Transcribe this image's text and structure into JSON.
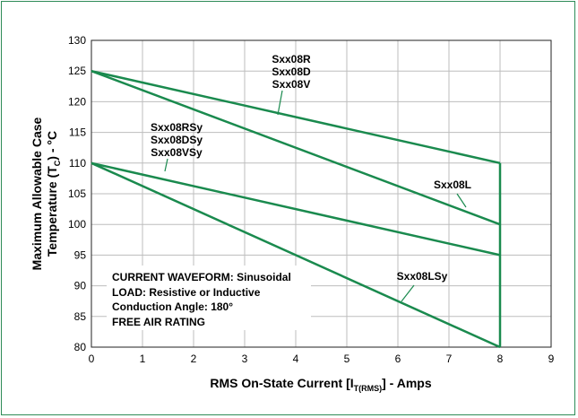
{
  "chart_data": {
    "type": "line",
    "xlabel": "RMS On-State Current [I",
    "xlabel_sub": "T(RMS)",
    "xlabel_tail": "] - Amps",
    "ylabel_line1": "Maximum Allowable Case",
    "ylabel_line2_pre": "Temperature (T",
    "ylabel_line2_sub": "C",
    "ylabel_line2_post": ") - °C",
    "xlim": [
      0,
      9
    ],
    "ylim": [
      80,
      130
    ],
    "x_ticks": [
      0,
      1,
      2,
      3,
      4,
      5,
      6,
      7,
      8,
      9
    ],
    "y_ticks": [
      80,
      85,
      90,
      95,
      100,
      105,
      110,
      115,
      120,
      125,
      130
    ],
    "grid": true,
    "line_color": "#1a8a4e",
    "series": [
      {
        "name": "Sxx08R / Sxx08D / Sxx08V",
        "x": [
          0,
          8
        ],
        "y": [
          125,
          110
        ]
      },
      {
        "name": "Sxx08L",
        "x": [
          0,
          8
        ],
        "y": [
          125,
          100
        ]
      },
      {
        "name": "Sxx08RSy / Sxx08DSy / Sxx08VSy",
        "x": [
          0,
          8
        ],
        "y": [
          110,
          95
        ]
      },
      {
        "name": "Sxx08LSy",
        "x": [
          0,
          8
        ],
        "y": [
          110,
          80
        ]
      }
    ],
    "vertical_line": {
      "x": 8,
      "y": [
        80,
        110
      ]
    },
    "labels": {
      "upper_group": [
        "Sxx08R",
        "Sxx08D",
        "Sxx08V"
      ],
      "mid_group": [
        "Sxx08RSy",
        "Sxx08DSy",
        "Sxx08VSy"
      ],
      "l": "Sxx08L",
      "lsy": "Sxx08LSy"
    },
    "notes": [
      "CURRENT WAVEFORM:  Sinusoidal",
      "LOAD:  Resistive or Inductive",
      "Conduction Angle:  180°",
      "FREE AIR RATING"
    ]
  }
}
